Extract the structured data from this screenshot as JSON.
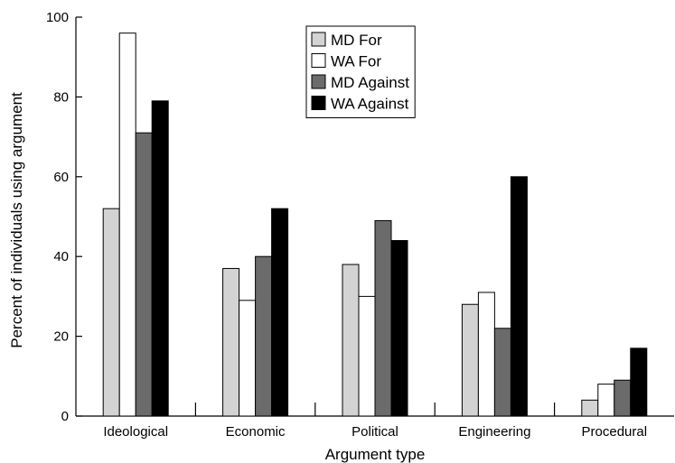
{
  "chart_data": {
    "type": "bar",
    "title": "",
    "xlabel": "Argument type",
    "ylabel": "Percent of individuals using argument",
    "categories": [
      "Ideological",
      "Economic",
      "Political",
      "Engineering",
      "Procedural"
    ],
    "ylim": [
      0,
      100
    ],
    "yticks": [
      0,
      20,
      40,
      60,
      80,
      100
    ],
    "grid": false,
    "legend_position": "top-center",
    "series": [
      {
        "name": "MD For",
        "color": "#d3d3d3",
        "values": [
          52,
          37,
          38,
          28,
          4
        ]
      },
      {
        "name": "WA For",
        "color": "#ffffff",
        "values": [
          96,
          29,
          30,
          31,
          8
        ]
      },
      {
        "name": "MD Against",
        "color": "#6b6b6b",
        "values": [
          71,
          40,
          49,
          22,
          9
        ]
      },
      {
        "name": "WA Against",
        "color": "#000000",
        "values": [
          79,
          52,
          44,
          60,
          17
        ]
      }
    ]
  }
}
